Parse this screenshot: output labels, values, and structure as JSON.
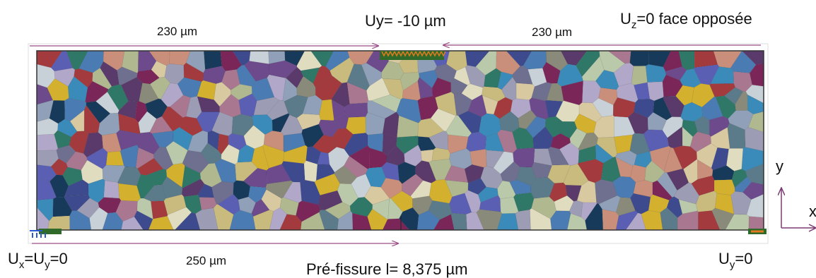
{
  "labels": {
    "top_left_length": "230 µm",
    "imposed_displacement": "Uy= -10 µm",
    "top_right_length": "230 µm",
    "opposite_face": [
      {
        "text": "U",
        "sub": false
      },
      {
        "text": "z",
        "sub": true
      },
      {
        "text": "=0 face opposée",
        "sub": false
      }
    ],
    "left_support": [
      {
        "text": "U",
        "sub": false
      },
      {
        "text": "x",
        "sub": true
      },
      {
        "text": "=U",
        "sub": false
      },
      {
        "text": "y",
        "sub": true
      },
      {
        "text": "=0",
        "sub": false
      }
    ],
    "bottom_length": "250 µm",
    "pre_crack": "Pré-fissure l= 8,375 µm",
    "right_support": [
      {
        "text": "U",
        "sub": false
      },
      {
        "text": "y",
        "sub": true
      },
      {
        "text": "=0",
        "sub": false
      }
    ],
    "axis_y": "y",
    "axis_x": "x"
  }
}
